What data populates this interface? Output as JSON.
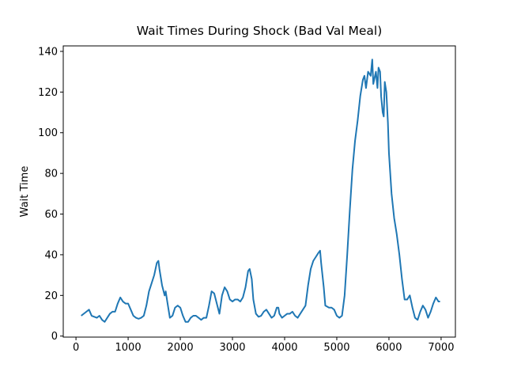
{
  "chart_data": {
    "type": "line",
    "title": "Wait Times During Shock (Bad Val Meal)",
    "y_label": "Wait Time",
    "x": [
      100,
      200,
      250,
      300,
      400,
      450,
      500,
      550,
      600,
      650,
      700,
      750,
      800,
      850,
      900,
      950,
      1000,
      1050,
      1100,
      1150,
      1200,
      1250,
      1300,
      1350,
      1400,
      1450,
      1500,
      1550,
      1580,
      1600,
      1650,
      1700,
      1720,
      1750,
      1800,
      1850,
      1900,
      1950,
      2000,
      2050,
      2100,
      2150,
      2200,
      2250,
      2300,
      2350,
      2400,
      2450,
      2500,
      2550,
      2600,
      2650,
      2700,
      2750,
      2800,
      2850,
      2900,
      2950,
      3000,
      3050,
      3100,
      3150,
      3200,
      3250,
      3300,
      3330,
      3370,
      3400,
      3450,
      3500,
      3550,
      3600,
      3650,
      3700,
      3750,
      3800,
      3850,
      3880,
      3900,
      3950,
      4000,
      4050,
      4100,
      4150,
      4200,
      4250,
      4300,
      4350,
      4400,
      4450,
      4500,
      4550,
      4600,
      4650,
      4680,
      4700,
      4750,
      4780,
      4850,
      4900,
      4950,
      5000,
      5050,
      5100,
      5150,
      5200,
      5250,
      5300,
      5350,
      5400,
      5450,
      5500,
      5530,
      5560,
      5600,
      5650,
      5680,
      5700,
      5750,
      5780,
      5800,
      5830,
      5850,
      5880,
      5900,
      5920,
      5950,
      5980,
      6000,
      6050,
      6100,
      6150,
      6200,
      6250,
      6300,
      6350,
      6400,
      6450,
      6500,
      6550,
      6600,
      6650,
      6700,
      6750,
      6800,
      6850,
      6900,
      6950,
      6980
    ],
    "series": [
      {
        "name": "Wait Time",
        "color": "#1f77b4",
        "values": [
          10,
          12,
          13,
          10,
          9,
          10,
          8,
          7,
          9,
          11,
          12,
          12,
          16,
          19,
          17,
          16,
          16,
          13,
          10,
          9,
          8.5,
          9,
          10,
          15,
          22,
          26,
          30,
          36,
          37,
          33,
          25,
          20,
          22,
          17,
          9,
          10,
          14,
          15,
          14,
          10,
          7,
          7,
          9,
          10,
          10,
          9,
          8,
          9,
          9,
          15,
          22,
          21,
          16,
          11,
          20,
          24,
          22,
          18,
          17,
          18,
          18,
          17,
          19,
          24,
          32,
          33,
          28,
          18,
          11,
          9.5,
          10,
          12,
          13,
          11,
          9,
          10,
          14,
          14,
          11,
          9,
          10,
          11,
          11,
          12,
          10,
          9,
          11,
          13,
          15,
          25,
          33,
          37,
          39,
          41,
          42,
          36,
          24,
          15,
          14,
          14,
          13,
          10,
          9,
          10,
          20,
          40,
          62,
          82,
          96,
          106,
          118,
          126,
          128,
          122,
          130,
          128,
          136,
          124,
          130,
          122,
          132,
          130,
          118,
          110,
          108,
          125,
          120,
          105,
          90,
          70,
          58,
          50,
          40,
          28,
          18,
          18,
          20,
          14,
          9,
          8,
          12,
          15,
          13,
          9,
          12,
          16,
          19,
          17,
          17
        ]
      }
    ],
    "xlim": [
      -244,
      7274
    ],
    "ylim": [
      -0.5,
      142.7
    ],
    "xticks": [
      0,
      1000,
      2000,
      3000,
      4000,
      5000,
      6000,
      7000
    ],
    "yticks": [
      0,
      20,
      40,
      60,
      80,
      100,
      120,
      140
    ]
  }
}
